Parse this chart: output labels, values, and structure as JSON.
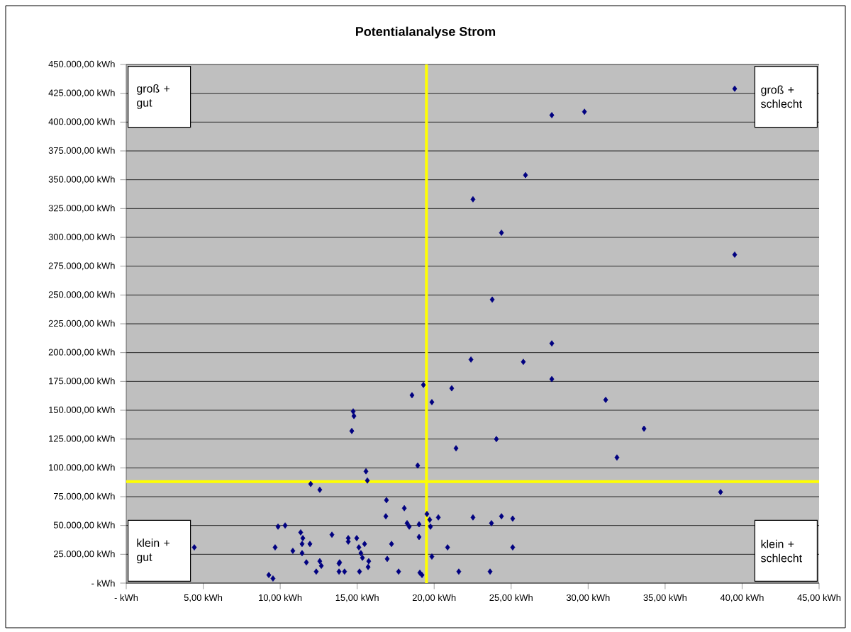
{
  "chart_data": {
    "type": "scatter",
    "title": "Potentialanalyse Strom",
    "x": [
      4.42,
      9.26,
      9.53,
      9.67,
      9.86,
      10.32,
      10.82,
      11.33,
      11.47,
      11.42,
      11.42,
      11.7,
      11.93,
      11.98,
      12.57,
      12.34,
      12.57,
      12.67,
      13.36,
      13.82,
      13.86,
      13.82,
      14.18,
      14.42,
      14.42,
      14.74,
      14.79,
      14.65,
      14.97,
      15.11,
      15.15,
      15.24,
      15.34,
      15.48,
      15.57,
      15.66,
      15.75,
      15.71,
      16.9,
      16.86,
      16.95,
      17.23,
      17.69,
      18.06,
      18.24,
      18.38,
      18.56,
      18.93,
      19.02,
      19.02,
      19.07,
      19.21,
      19.3,
      19.53,
      19.71,
      19.76,
      19.85,
      19.85,
      20.27,
      20.87,
      21.14,
      21.42,
      21.6,
      22.39,
      22.52,
      22.52,
      23.63,
      23.72,
      23.77,
      24.04,
      24.37,
      24.37,
      25.1,
      25.1,
      25.79,
      25.93,
      27.64,
      27.64,
      27.64,
      29.76,
      31.14,
      31.87,
      33.63,
      38.6,
      39.52,
      39.52
    ],
    "values": [
      31000,
      7000,
      4000,
      31000,
      49000,
      50000,
      28000,
      44000,
      39000,
      34000,
      26000,
      18000,
      34000,
      86000,
      81000,
      10000,
      19000,
      15000,
      42000,
      17000,
      18000,
      10000,
      10000,
      36000,
      39000,
      149000,
      145000,
      132000,
      39000,
      31000,
      10000,
      26000,
      22000,
      34000,
      97000,
      89000,
      19000,
      14000,
      72000,
      58000,
      21000,
      34000,
      10000,
      65000,
      52000,
      49000,
      163000,
      102000,
      40000,
      51000,
      9000,
      7000,
      172000,
      60000,
      55000,
      49000,
      23000,
      157000,
      57000,
      31000,
      169000,
      117000,
      10000,
      194000,
      333000,
      57000,
      10000,
      52000,
      246000,
      125000,
      304000,
      58000,
      56000,
      31000,
      192000,
      354000,
      406000,
      208000,
      177000,
      409000,
      159000,
      109000,
      134000,
      79000,
      429000,
      285000
    ],
    "color": "#000080",
    "marker": "diamond",
    "xlim": [
      0,
      45
    ],
    "ylim": [
      0,
      450000
    ],
    "xticks": [
      {
        "value": 0,
        "label": "-   kWh"
      },
      {
        "value": 5,
        "label": "5,00 kWh"
      },
      {
        "value": 10,
        "label": "10,00 kWh"
      },
      {
        "value": 15,
        "label": "15,00 kWh"
      },
      {
        "value": 20,
        "label": "20,00 kWh"
      },
      {
        "value": 25,
        "label": "25,00 kWh"
      },
      {
        "value": 30,
        "label": "30,00 kWh"
      },
      {
        "value": 35,
        "label": "35,00 kWh"
      },
      {
        "value": 40,
        "label": "40,00 kWh"
      },
      {
        "value": 45,
        "label": "45,00 kWh"
      }
    ],
    "yticks": [
      {
        "value": 0,
        "label": "-   kWh"
      },
      {
        "value": 25000,
        "label": "25.000,00 kWh"
      },
      {
        "value": 50000,
        "label": "50.000,00 kWh"
      },
      {
        "value": 75000,
        "label": "75.000,00 kWh"
      },
      {
        "value": 100000,
        "label": "100.000,00 kWh"
      },
      {
        "value": 125000,
        "label": "125.000,00 kWh"
      },
      {
        "value": 150000,
        "label": "150.000,00 kWh"
      },
      {
        "value": 175000,
        "label": "175.000,00 kWh"
      },
      {
        "value": 200000,
        "label": "200.000,00 kWh"
      },
      {
        "value": 225000,
        "label": "225.000,00 kWh"
      },
      {
        "value": 250000,
        "label": "250.000,00 kWh"
      },
      {
        "value": 275000,
        "label": "275.000,00 kWh"
      },
      {
        "value": 300000,
        "label": "300.000,00 kWh"
      },
      {
        "value": 325000,
        "label": "325.000,00 kWh"
      },
      {
        "value": 350000,
        "label": "350.000,00 kWh"
      },
      {
        "value": 375000,
        "label": "375.000,00 kWh"
      },
      {
        "value": 400000,
        "label": "400.000,00 kWh"
      },
      {
        "value": 425000,
        "label": "425.000,00 kWh"
      },
      {
        "value": 450000,
        "label": "450.000,00 kWh"
      }
    ],
    "grid": "y",
    "ref_lines": [
      {
        "axis": "x",
        "value": 19.5,
        "color": "#ffff00"
      },
      {
        "axis": "y",
        "value": 88000,
        "color": "#ffff00"
      }
    ],
    "annotations": [
      "groß + gut",
      "groß + schlecht",
      "klein + gut",
      "klein + schlecht"
    ]
  }
}
